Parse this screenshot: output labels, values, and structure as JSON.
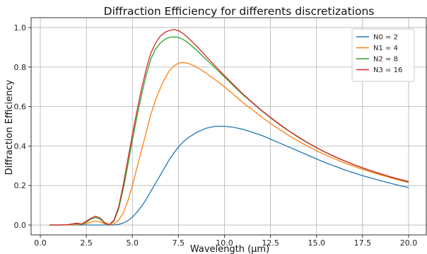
{
  "chart_data": {
    "type": "line",
    "title": "Diffraction Efficiency for differents discretizations",
    "xlabel": "Wavelength (μm)",
    "ylabel": "Diffraction Efficiency",
    "xlim": [
      -0.5,
      21.0
    ],
    "ylim": [
      -0.05,
      1.05
    ],
    "xticks": [
      0.0,
      2.5,
      5.0,
      7.5,
      10.0,
      12.5,
      15.0,
      17.5,
      20.0
    ],
    "xtick_labels": [
      "0.0",
      "2.5",
      "5.0",
      "7.5",
      "10.0",
      "12.5",
      "15.0",
      "17.5",
      "20.0"
    ],
    "yticks": [
      0.0,
      0.2,
      0.4,
      0.6,
      0.8,
      1.0
    ],
    "ytick_labels": [
      "0.0",
      "0.2",
      "0.4",
      "0.6",
      "0.8",
      "1.0"
    ],
    "grid": true,
    "legend_position": "top-right",
    "colors": [
      "#1f77b4",
      "#ff7f0e",
      "#2ca02c",
      "#d62728"
    ],
    "x": [
      0.5,
      1.0,
      1.5,
      2.0,
      2.25,
      2.5,
      2.75,
      3.0,
      3.25,
      3.5,
      3.75,
      4.0,
      4.25,
      4.5,
      4.75,
      5.0,
      5.25,
      5.5,
      5.75,
      6.0,
      6.25,
      6.5,
      6.75,
      7.0,
      7.25,
      7.5,
      7.75,
      8.0,
      8.5,
      9.0,
      9.5,
      10.0,
      10.5,
      11.0,
      11.5,
      12.0,
      12.5,
      13.0,
      13.5,
      14.0,
      14.5,
      15.0,
      15.5,
      16.0,
      16.5,
      17.0,
      17.5,
      18.0,
      18.5,
      19.0,
      19.5,
      20.0
    ],
    "series": [
      {
        "name": "N0 = 2",
        "values": [
          0.0,
          0.0,
          0.0,
          0.0,
          0.0,
          0.0,
          0.0,
          0.0,
          0.0,
          0.0,
          0.0,
          0.0,
          0.003,
          0.01,
          0.022,
          0.04,
          0.065,
          0.095,
          0.13,
          0.17,
          0.21,
          0.25,
          0.29,
          0.33,
          0.365,
          0.395,
          0.42,
          0.44,
          0.47,
          0.49,
          0.5,
          0.5,
          0.495,
          0.485,
          0.47,
          0.455,
          0.435,
          0.415,
          0.395,
          0.375,
          0.355,
          0.335,
          0.315,
          0.298,
          0.28,
          0.265,
          0.25,
          0.237,
          0.224,
          0.212,
          0.2,
          0.19
        ]
      },
      {
        "name": "N1 = 4",
        "values": [
          0.0,
          0.0,
          0.001,
          0.003,
          0.004,
          0.008,
          0.015,
          0.02,
          0.016,
          0.006,
          0.002,
          0.006,
          0.025,
          0.06,
          0.12,
          0.2,
          0.29,
          0.38,
          0.47,
          0.56,
          0.63,
          0.69,
          0.74,
          0.78,
          0.805,
          0.82,
          0.823,
          0.82,
          0.8,
          0.77,
          0.735,
          0.7,
          0.66,
          0.62,
          0.585,
          0.548,
          0.515,
          0.483,
          0.453,
          0.425,
          0.4,
          0.376,
          0.354,
          0.334,
          0.315,
          0.298,
          0.282,
          0.267,
          0.253,
          0.24,
          0.227,
          0.215
        ]
      },
      {
        "name": "N2 = 8",
        "values": [
          0.0,
          0.0,
          0.002,
          0.008,
          0.004,
          0.015,
          0.03,
          0.038,
          0.03,
          0.01,
          0.002,
          0.02,
          0.08,
          0.18,
          0.3,
          0.43,
          0.55,
          0.66,
          0.76,
          0.84,
          0.89,
          0.92,
          0.94,
          0.95,
          0.953,
          0.95,
          0.94,
          0.925,
          0.885,
          0.84,
          0.795,
          0.75,
          0.705,
          0.66,
          0.62,
          0.58,
          0.543,
          0.508,
          0.476,
          0.445,
          0.417,
          0.391,
          0.367,
          0.345,
          0.325,
          0.306,
          0.289,
          0.273,
          0.258,
          0.244,
          0.231,
          0.218
        ]
      },
      {
        "name": "N3 = 16",
        "values": [
          0.0,
          0.0,
          0.002,
          0.01,
          0.005,
          0.02,
          0.035,
          0.045,
          0.035,
          0.012,
          0.002,
          0.025,
          0.09,
          0.2,
          0.33,
          0.46,
          0.58,
          0.69,
          0.79,
          0.87,
          0.92,
          0.955,
          0.975,
          0.985,
          0.99,
          0.985,
          0.97,
          0.95,
          0.905,
          0.855,
          0.805,
          0.757,
          0.71,
          0.664,
          0.622,
          0.582,
          0.545,
          0.51,
          0.477,
          0.447,
          0.418,
          0.392,
          0.368,
          0.346,
          0.326,
          0.307,
          0.29,
          0.274,
          0.259,
          0.245,
          0.232,
          0.22
        ]
      }
    ]
  }
}
